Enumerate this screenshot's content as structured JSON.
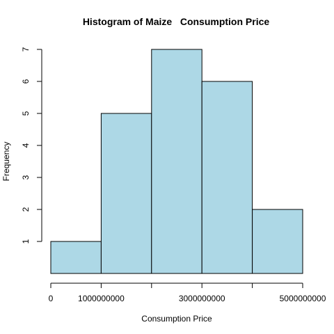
{
  "chart_data": {
    "type": "bar",
    "title": "Histogram of Maize   Consumption Price",
    "xlabel": "Consumption Price",
    "ylabel": "Frequency",
    "bins": [
      {
        "from": 0,
        "to": 1000000000,
        "count": 1
      },
      {
        "from": 1000000000,
        "to": 2000000000,
        "count": 5
      },
      {
        "from": 2000000000,
        "to": 3000000000,
        "count": 7
      },
      {
        "from": 3000000000,
        "to": 4000000000,
        "count": 6
      },
      {
        "from": 4000000000,
        "to": 5000000000,
        "count": 2
      }
    ],
    "xlim": [
      0,
      5000000000
    ],
    "ylim": [
      0,
      7
    ],
    "x_ticks": [
      0,
      1000000000,
      2000000000,
      3000000000,
      4000000000,
      5000000000
    ],
    "x_tick_labels": [
      "0",
      "1000000000",
      "",
      "3000000000",
      "",
      "5000000000"
    ],
    "y_ticks": [
      1,
      2,
      3,
      4,
      5,
      6,
      7
    ],
    "y_tick_labels": [
      "1",
      "2",
      "3",
      "4",
      "5",
      "6",
      "7"
    ],
    "bar_color": "#add8e6",
    "grid": false,
    "legend": "none"
  }
}
